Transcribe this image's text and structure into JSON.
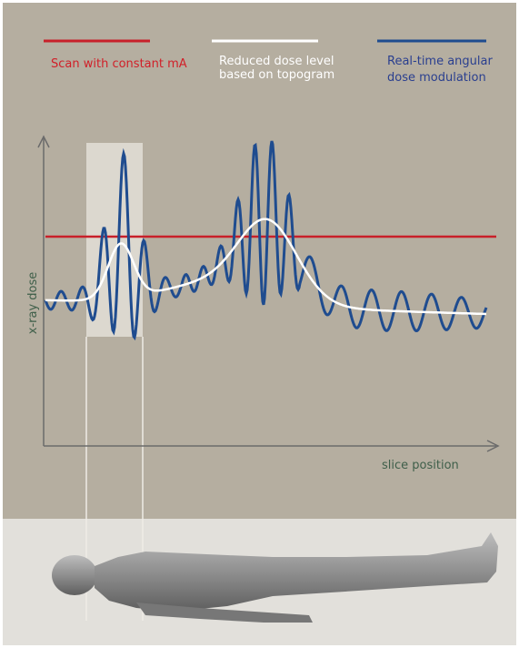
{
  "legend": {
    "items": [
      {
        "lines": [
          "Scan with constant mA"
        ]
      },
      {
        "lines": [
          "Reduced dose level",
          "based on topogram"
        ]
      },
      {
        "lines": [
          "Real-time angular",
          "dose modulation"
        ]
      }
    ]
  },
  "axes": {
    "y_label": "x-ray dose",
    "x_label": "slice position"
  }
}
